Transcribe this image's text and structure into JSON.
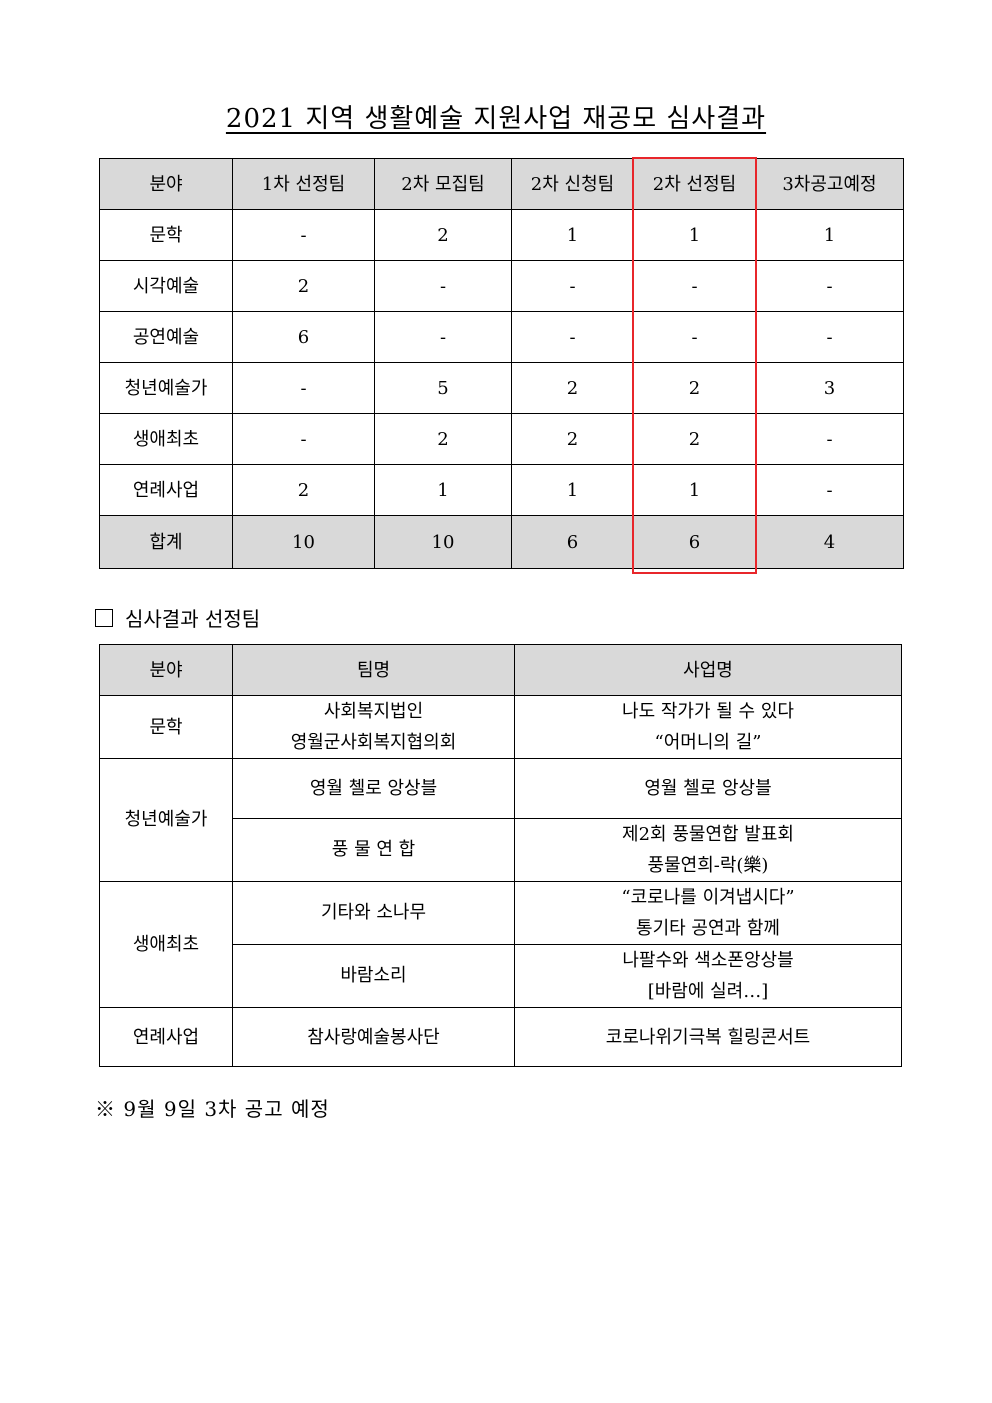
{
  "title": "2021 지역 생활예술 지원사업 재공모 심사결과",
  "summary_table": {
    "headers": [
      "분야",
      "1차 선정팀",
      "2차 모집팀",
      "2차 신청팀",
      "2차 선정팀",
      "3차공고예정"
    ],
    "highlight_color": "#e8262b",
    "rows": [
      [
        "문학",
        "-",
        "2",
        "1",
        "1",
        "1"
      ],
      [
        "시각예술",
        "2",
        "-",
        "-",
        "-",
        "-"
      ],
      [
        "공연예술",
        "6",
        "-",
        "-",
        "-",
        "-"
      ],
      [
        "청년예술가",
        "-",
        "5",
        "2",
        "2",
        "3"
      ],
      [
        "생애최초",
        "-",
        "2",
        "2",
        "2",
        "-"
      ],
      [
        "연례사업",
        "2",
        "1",
        "1",
        "1",
        "-"
      ]
    ],
    "total": [
      "합계",
      "10",
      "10",
      "6",
      "6",
      "4"
    ]
  },
  "section_heading": "심사결과 선정팀",
  "selection_table": {
    "headers": [
      "분야",
      "팀명",
      "사업명"
    ],
    "rows": [
      {
        "field": "문학",
        "team": [
          "사회복지법인",
          "영월군사회복지협의회"
        ],
        "project": [
          "나도 작가가 될 수 있다",
          "“어머니의 길”"
        ]
      },
      {
        "field": "청년예술가",
        "team": [
          "영월 첼로 앙상블"
        ],
        "project": [
          "영월 첼로 앙상블"
        ]
      },
      {
        "field": "",
        "team": [
          "풍 물 연 합"
        ],
        "project": [
          "제2회 풍물연합 발표회",
          "풍물연희-락(樂)"
        ]
      },
      {
        "field": "생애최초",
        "team": [
          "기타와 소나무"
        ],
        "project": [
          "“코로나를 이겨냅시다”",
          "통기타 공연과 함께"
        ]
      },
      {
        "field": "",
        "team": [
          "바람소리"
        ],
        "project": [
          "나팔수와 색소폰앙상블",
          "[바람에 실려…]"
        ]
      },
      {
        "field": "연례사업",
        "team": [
          "참사랑예술봉사단"
        ],
        "project": [
          "코로나위기극복 힐링콘서트"
        ]
      }
    ]
  },
  "note": "※ 9월 9일 3차 공고 예정"
}
